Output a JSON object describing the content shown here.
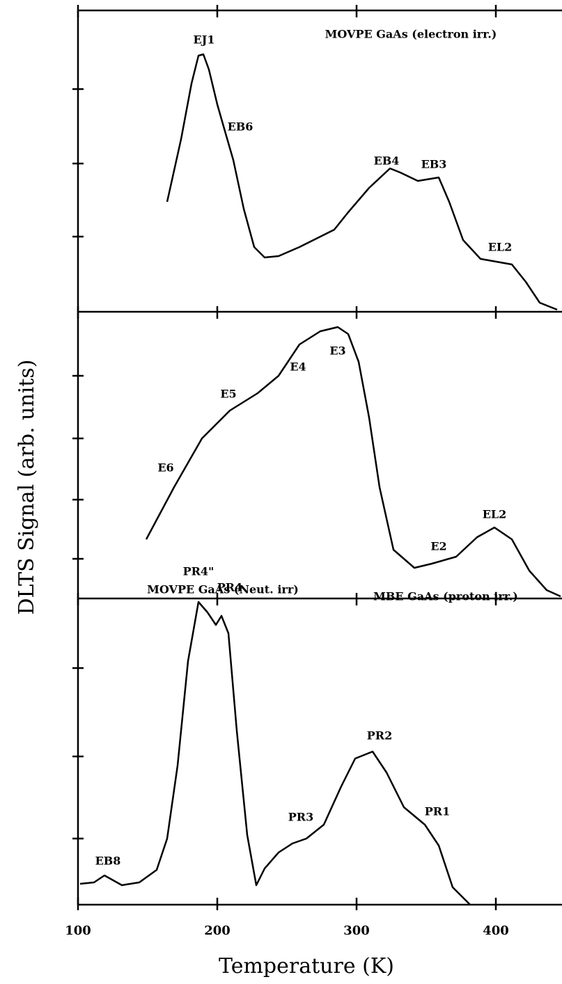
{
  "chart_data": [
    {
      "type": "line",
      "title": "MOVPE GaAs (electron irr.)",
      "annotations": [
        "EJ1",
        "EB6",
        "EB4",
        "EB3",
        "EL2"
      ],
      "x": [
        164,
        174,
        181.5,
        186.5,
        190,
        194,
        200,
        205,
        211.5,
        219,
        226.5,
        234,
        244,
        259,
        274,
        284,
        294,
        309,
        324,
        331.5,
        344,
        359,
        366.5,
        376.5,
        389,
        411.5,
        421.5,
        431.5,
        444
      ],
      "values": [
        1.58,
        2.48,
        3.28,
        3.68,
        3.7,
        3.48,
        2.98,
        2.63,
        2.18,
        1.48,
        0.93,
        0.78,
        0.8,
        0.93,
        1.08,
        1.18,
        1.43,
        1.78,
        2.06,
        2.0,
        1.88,
        1.93,
        1.58,
        1.03,
        0.76,
        0.68,
        0.43,
        0.13,
        0.03
      ],
      "color": "#000000",
      "xlim": [
        100,
        447.5
      ],
      "xticks": [
        100,
        200,
        300,
        400
      ],
      "ylim": [
        0,
        4.33
      ],
      "yticks": [
        1.08,
        2.13,
        3.2
      ]
    },
    {
      "type": "line",
      "title": "MOVPE GaAs (Neut. irr)",
      "annotations": [
        "E3",
        "E4",
        "E5",
        "E6",
        "E2",
        "EL2"
      ],
      "ylabel": "DLTS Signal  (arb. units)",
      "x": [
        149,
        169,
        189,
        209,
        229,
        244,
        259,
        274,
        286.5,
        294,
        301.5,
        309,
        316.5,
        326.5,
        341.5,
        354,
        371.5,
        386.5,
        399,
        411.5,
        424,
        436.5,
        446.5
      ],
      "values": [
        0.85,
        1.6,
        2.3,
        2.7,
        2.95,
        3.2,
        3.65,
        3.84,
        3.9,
        3.8,
        3.4,
        2.6,
        1.6,
        0.7,
        0.44,
        0.5,
        0.6,
        0.88,
        1.02,
        0.85,
        0.4,
        0.12,
        0.03
      ],
      "color": "#000000",
      "xlim": [
        100,
        447.5
      ],
      "xticks": [
        100,
        200,
        300,
        400
      ],
      "ylim": [
        0,
        4.12
      ],
      "yticks": [
        0.57,
        1.42,
        2.3,
        3.2
      ]
    },
    {
      "type": "line",
      "title": "MBE GaAs (proton irr.)",
      "annotations": [
        "PR4\"",
        "PR4",
        "PR2",
        "PR1",
        "PR3",
        "EB8"
      ],
      "xlabel": "Temperature (K)",
      "x": [
        101.5,
        111.5,
        119,
        131.5,
        144,
        156.5,
        164,
        171.5,
        179,
        186.5,
        193,
        199,
        203,
        208,
        214,
        221.5,
        228,
        234,
        244,
        254,
        264,
        276.5,
        289,
        299,
        311.5,
        321.5,
        334,
        349,
        359,
        369,
        381.5
      ],
      "values": [
        0.3,
        0.32,
        0.42,
        0.28,
        0.32,
        0.5,
        0.95,
        2.0,
        3.5,
        4.35,
        4.2,
        4.02,
        4.15,
        3.9,
        2.5,
        1.0,
        0.28,
        0.52,
        0.75,
        0.88,
        0.95,
        1.15,
        1.7,
        2.1,
        2.2,
        1.9,
        1.4,
        1.15,
        0.85,
        0.25,
        0
      ],
      "color": "#000000",
      "xlim": [
        100,
        447.5
      ],
      "xticks": [
        100,
        200,
        300,
        400
      ],
      "ylim": [
        0,
        4.4
      ],
      "yticks": [
        0.95,
        2.13,
        3.4
      ]
    }
  ]
}
